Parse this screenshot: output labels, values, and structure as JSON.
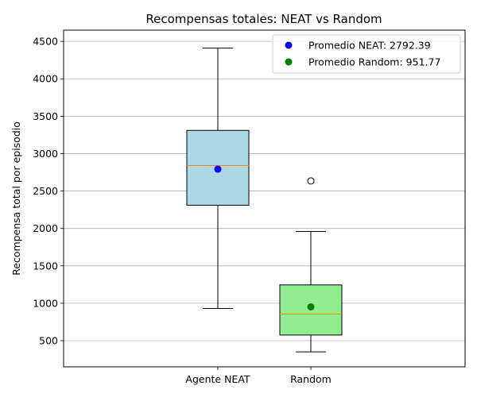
{
  "chart_data": {
    "type": "box",
    "title": "Recompensas totales: NEAT vs Random",
    "ylabel": "Recompensa total por episodio",
    "xlabel": "",
    "ylim": [
      150,
      4650
    ],
    "yticks": [
      500,
      1000,
      1500,
      2000,
      2500,
      3000,
      3500,
      4000,
      4500
    ],
    "grid": "y",
    "legend_position": "upper right",
    "categories": [
      "Agente NEAT",
      "Random"
    ],
    "series": [
      {
        "category": "Agente NEAT",
        "whisker_low": 930,
        "q1": 2310,
        "median": 2840,
        "q3": 3310,
        "whisker_high": 4410,
        "mean": 2792.39,
        "outliers": [],
        "box_color": "#add8e6",
        "mean_color": "#0000ff"
      },
      {
        "category": "Random",
        "whisker_low": 350,
        "q1": 575,
        "median": 855,
        "q3": 1245,
        "whisker_high": 1960,
        "mean": 951.77,
        "outliers": [
          2635
        ],
        "box_color": "#90ee90",
        "mean_color": "#008000"
      }
    ],
    "legend": [
      {
        "label": "Promedio NEAT: 2792.39",
        "color": "#0000ff"
      },
      {
        "label": "Promedio Random: 951.77",
        "color": "#008000"
      }
    ],
    "median_color": "#ff7f0e",
    "grid_color": "#b0b0b0"
  }
}
